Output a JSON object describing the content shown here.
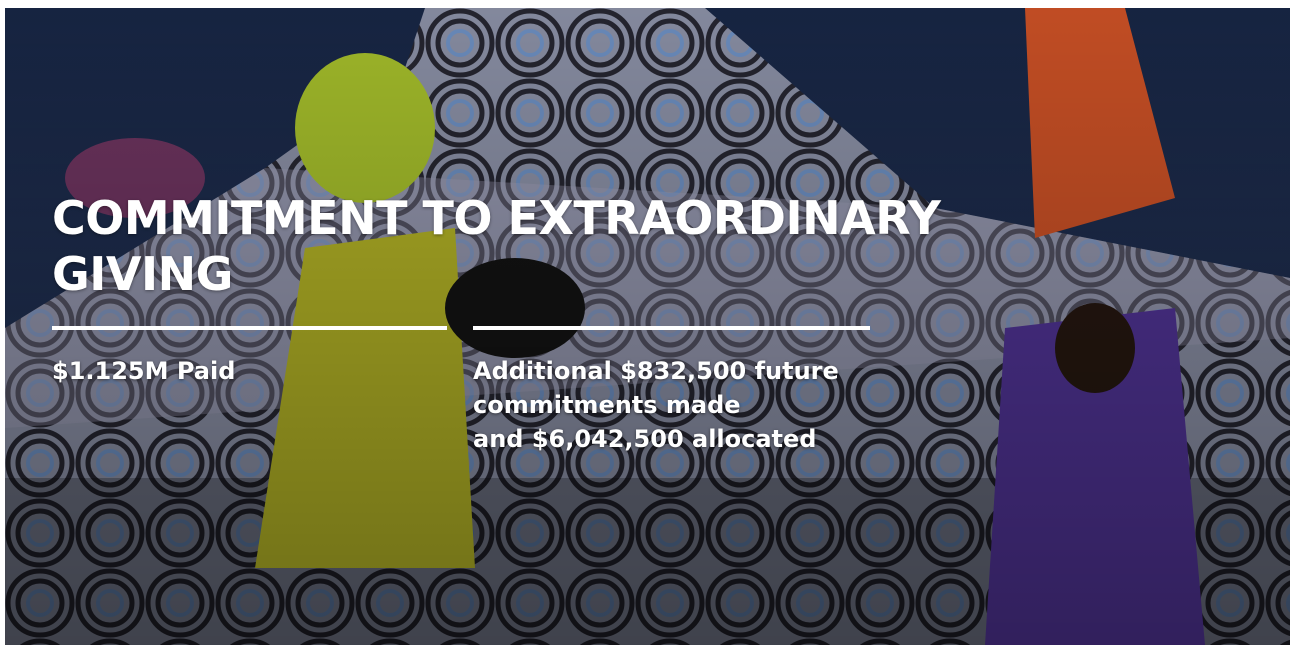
{
  "hero": {
    "title_lines": [
      "COMMITMENT TO EXTRAORDINARY",
      "GIVING"
    ],
    "stats": [
      {
        "lines": [
          "$1.125M Paid"
        ]
      },
      {
        "lines": [
          "Additional $832,500 future",
          "commitments made",
          "and $6,042,500 allocated"
        ]
      }
    ]
  }
}
